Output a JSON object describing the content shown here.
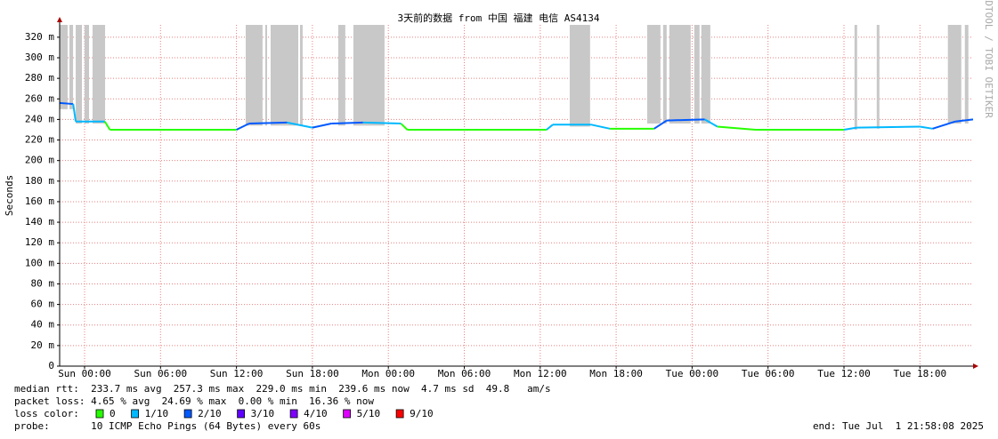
{
  "chart_data": {
    "type": "line",
    "title": "3天前的数据 from 中国 福建 电信 AS4134",
    "y_label": "Seconds",
    "watermark": "RRDTOOL / TOBI OETIKER",
    "xlim": [
      -1.97,
      70.2
    ],
    "xticks": [
      {
        "value": 0,
        "label": "Sun 00:00"
      },
      {
        "value": 6,
        "label": "Sun 06:00"
      },
      {
        "value": 12,
        "label": "Sun 12:00"
      },
      {
        "value": 18,
        "label": "Sun 18:00"
      },
      {
        "value": 24,
        "label": "Mon 00:00"
      },
      {
        "value": 30,
        "label": "Mon 06:00"
      },
      {
        "value": 36,
        "label": "Mon 12:00"
      },
      {
        "value": 42,
        "label": "Mon 18:00"
      },
      {
        "value": 48,
        "label": "Tue 00:00"
      },
      {
        "value": 54,
        "label": "Tue 06:00"
      },
      {
        "value": 60,
        "label": "Tue 12:00"
      },
      {
        "value": 66,
        "label": "Tue 18:00"
      }
    ],
    "ylim": [
      0,
      0.332
    ],
    "yticks": [
      0,
      {
        "value": 0.02,
        "label": "20 m"
      },
      {
        "value": 0.04,
        "label": "40 m"
      },
      {
        "value": 0.06,
        "label": "60 m"
      },
      {
        "value": 0.08,
        "label": "80 m"
      },
      {
        "value": 0.1,
        "label": "100 m"
      },
      {
        "value": 0.12,
        "label": "120 m"
      },
      {
        "value": 0.14,
        "label": "140 m"
      },
      {
        "value": 0.16,
        "label": "160 m"
      },
      {
        "value": 0.18,
        "label": "180 m"
      },
      {
        "value": 0.2,
        "label": "200 m"
      },
      {
        "value": 0.22,
        "label": "220 m"
      },
      {
        "value": 0.24,
        "label": "240 m"
      },
      {
        "value": 0.26,
        "label": "260 m"
      },
      {
        "value": 0.28,
        "label": "280 m"
      },
      {
        "value": 0.3,
        "label": "300 m"
      },
      {
        "value": 0.32,
        "label": "320 m"
      }
    ],
    "grid": true,
    "grid_color": "#e88080",
    "x": [
      -1.97,
      -0.9,
      -0.7,
      1.6,
      2,
      12,
      13,
      16,
      18,
      19.5,
      22,
      25,
      25.5,
      36.5,
      37,
      40,
      41.5,
      45,
      46,
      49,
      50,
      53,
      60,
      61,
      66,
      67,
      68.8,
      70.2
    ],
    "values": [
      0.256,
      0.255,
      0.238,
      0.238,
      0.23,
      0.23,
      0.236,
      0.237,
      0.232,
      0.236,
      0.237,
      0.236,
      0.23,
      0.23,
      0.235,
      0.235,
      0.231,
      0.231,
      0.239,
      0.24,
      0.233,
      0.23,
      0.23,
      0.232,
      0.233,
      0.231,
      0.238,
      0.24
    ],
    "loss": [
      2,
      2,
      1,
      1,
      0,
      0,
      2,
      2,
      1,
      2,
      2,
      1,
      0,
      0,
      1,
      1,
      1,
      0,
      2,
      2,
      1,
      0,
      0,
      1,
      1,
      1,
      2,
      2
    ],
    "smoke": {
      "color": "#c8c8c8",
      "start": [
        -1.97,
        -1.2,
        -0.7,
        0,
        0.63,
        12.73,
        14.28,
        14.7,
        17.02,
        20.04,
        21.24,
        38.33,
        44.45,
        45.71,
        46.2,
        48.17,
        48.73,
        60.83,
        62.59,
        68.21,
        69.55
      ],
      "end": [
        -1.34,
        -0.91,
        -0.21,
        0.35,
        1.62,
        14.06,
        14.42,
        16.88,
        17.23,
        20.6,
        23.7,
        39.94,
        45.5,
        45.99,
        47.89,
        48.59,
        49.44,
        61.04,
        62.8,
        69.27,
        69.83
      ],
      "low": [
        0.25,
        0.25,
        0.236,
        0.236,
        0.236,
        0.234,
        0.234,
        0.234,
        0.234,
        0.234,
        0.234,
        0.233,
        0.236,
        0.236,
        0.236,
        0.236,
        0.236,
        0.23,
        0.231,
        0.236,
        0.236
      ],
      "high": [
        0.332,
        0.332,
        0.332,
        0.332,
        0.332,
        0.332,
        0.332,
        0.332,
        0.332,
        0.332,
        0.332,
        0.332,
        0.332,
        0.332,
        0.332,
        0.332,
        0.332,
        0.332,
        0.332,
        0.332,
        0.332
      ]
    },
    "stats": [
      "median rtt:  233.7 ms avg  257.3 ms max  229.0 ms min  239.6 ms now  4.7 ms sd  49.8   am/s",
      "packet loss: 4.65 % avg  24.69 % max  0.00 % min  16.36 % now"
    ],
    "legend_label": "loss color:",
    "loss_colors": [
      {
        "name": "0",
        "color": "#26ff00"
      },
      {
        "name": "1/10",
        "color": "#00b8ff"
      },
      {
        "name": "2/10",
        "color": "#0059ff"
      },
      {
        "name": "3/10",
        "color": "#5e00ff"
      },
      {
        "name": "4/10",
        "color": "#7e00ff"
      },
      {
        "name": "5/10",
        "color": "#dd00ff"
      },
      {
        "name": "9/10",
        "color": "#ff0000"
      }
    ],
    "probe": "probe:       10 ICMP Echo Pings (64 Bytes) every 60s",
    "end": "end: Tue Jul  1 21:58:08 2025"
  }
}
